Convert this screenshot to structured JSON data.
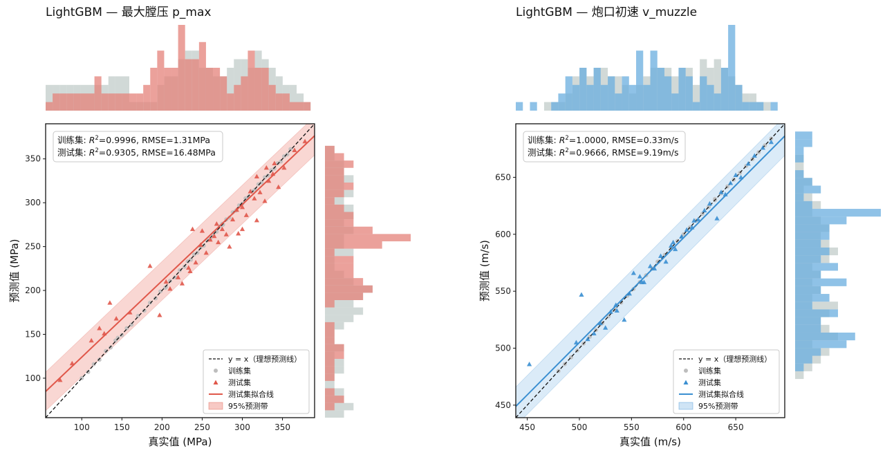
{
  "colors": {
    "train": "#bdbdbd",
    "train_hist": "#b3bfbd",
    "left_accent": "#e0574a",
    "left_hist": "#e4817a",
    "left_band": "#f7c9c4",
    "right_accent": "#3a8fd1",
    "right_hist": "#6aaedf",
    "right_band": "#cfe4f5"
  },
  "chart_data": [
    {
      "type": "scatter",
      "title": "LightGBM — 最大膛压 p_max",
      "xlabel": "真实值 (MPa)",
      "ylabel": "预测值 (MPa)",
      "xlim": [
        55,
        390
      ],
      "ylim": [
        55,
        390
      ],
      "xticks": [
        100,
        150,
        200,
        250,
        300,
        350
      ],
      "yticks": [
        100,
        150,
        200,
        250,
        300,
        350
      ],
      "stats": {
        "train": {
          "prefix": "训练集: ",
          "r2": "=0.9996",
          "rmse": ", RMSE=1.31MPa"
        },
        "test": {
          "prefix": "测试集: ",
          "r2": "=0.9305",
          "rmse": ", RMSE=16.48MPa"
        }
      },
      "r2_label": "R",
      "fit": {
        "slope": 0.87,
        "intercept": 37,
        "band": 22
      },
      "legend": [
        "y = x（理想预测线）",
        "训练集",
        "测试集",
        "测试集拟合线",
        "95%预测带"
      ],
      "train": {
        "x": [
          100,
          108,
          115,
          122,
          130,
          136,
          142,
          150,
          156,
          162,
          170,
          178,
          185,
          192,
          198,
          204,
          210,
          216,
          222,
          228,
          232,
          236,
          240,
          244,
          248,
          252,
          256,
          260,
          264,
          268,
          272,
          276,
          280,
          284,
          288,
          292,
          296,
          300,
          304,
          308,
          312,
          316,
          320,
          324,
          328,
          332,
          336,
          340,
          344,
          348,
          352,
          356,
          360,
          145,
          205,
          275
        ],
        "y": [
          100,
          107,
          116,
          121,
          131,
          135,
          143,
          149,
          157,
          161,
          171,
          177,
          186,
          191,
          199,
          203,
          211,
          215,
          223,
          227,
          233,
          235,
          241,
          243,
          249,
          251,
          257,
          259,
          265,
          267,
          273,
          275,
          281,
          283,
          289,
          291,
          297,
          299,
          305,
          307,
          313,
          315,
          321,
          323,
          329,
          331,
          337,
          339,
          345,
          347,
          353,
          355,
          361,
          146,
          204,
          276
        ]
      },
      "test": {
        "x": [
          73,
          88,
          112,
          122,
          128,
          135,
          143,
          160,
          185,
          197,
          205,
          210,
          220,
          225,
          233,
          238,
          242,
          248,
          255,
          260,
          265,
          270,
          275,
          280,
          284,
          288,
          293,
          300,
          305,
          310,
          315,
          318,
          322,
          328,
          333,
          338,
          345,
          352,
          365,
          378,
          235,
          295,
          318,
          300,
          330,
          340,
          250,
          268
        ],
        "y": [
          98,
          117,
          143,
          157,
          151,
          186,
          168,
          175,
          228,
          172,
          210,
          202,
          215,
          208,
          226,
          270,
          232,
          252,
          243,
          258,
          262,
          255,
          270,
          264,
          250,
          281,
          292,
          270,
          286,
          313,
          305,
          280,
          312,
          302,
          325,
          333,
          318,
          340,
          360,
          370,
          222,
          265,
          330,
          295,
          340,
          345,
          268,
          276
        ]
      },
      "hist_top": {
        "edges": [
          55,
          385
        ],
        "train": [
          3,
          3,
          3,
          3,
          3,
          3,
          3,
          3,
          3,
          4,
          4,
          4,
          1,
          1,
          1,
          1,
          3,
          4,
          4,
          6,
          7,
          7,
          5,
          5,
          4,
          4,
          5,
          6,
          6,
          5,
          7,
          6,
          5,
          4,
          3,
          3,
          2,
          1
        ],
        "test": [
          1,
          2,
          2,
          2,
          2,
          2,
          2,
          4,
          2,
          2,
          2,
          2,
          2,
          2,
          3,
          5,
          7,
          5,
          5,
          10,
          6,
          6,
          8,
          5,
          5,
          4,
          2,
          3,
          4,
          7,
          5,
          5,
          3,
          2,
          2,
          1,
          1,
          1
        ]
      },
      "hist_right": {
        "edges": [
          55,
          390
        ],
        "train": [
          2,
          3,
          2,
          2,
          1,
          1,
          2,
          2,
          1,
          2,
          1,
          1,
          2,
          3,
          4,
          3,
          4,
          5,
          3,
          2,
          1,
          1,
          3,
          2,
          2,
          3,
          2,
          3,
          3,
          2,
          3,
          2,
          3,
          2,
          2,
          1,
          1,
          0,
          0,
          0
        ],
        "test": [
          0,
          1,
          2,
          1,
          0,
          1,
          1,
          1,
          2,
          2,
          1,
          1,
          1,
          0,
          0,
          1,
          4,
          5,
          4,
          3,
          3,
          3,
          1,
          6,
          9,
          5,
          3,
          3,
          2,
          1,
          2,
          3,
          2,
          2,
          3,
          2,
          1,
          0,
          0,
          0
        ]
      }
    },
    {
      "type": "scatter",
      "title": "LightGBM — 炮口初速 v_muzzle",
      "xlabel": "真实值 (m/s)",
      "ylabel": "预测值 (m/s)",
      "xlim": [
        439,
        697
      ],
      "ylim": [
        439,
        697
      ],
      "xticks": [
        450,
        500,
        550,
        600,
        650
      ],
      "yticks": [
        450,
        500,
        550,
        600,
        650
      ],
      "stats": {
        "train": {
          "prefix": "训练集: ",
          "r2": "=1.0000",
          "rmse": ", RMSE=0.33m/s"
        },
        "test": {
          "prefix": "测试集: ",
          "r2": "=0.9666",
          "rmse": ", RMSE=9.19m/s"
        }
      },
      "r2_label": "R",
      "fit": {
        "slope": 0.92,
        "intercept": 45,
        "band": 17
      },
      "legend": [
        "y = x（理想预测线）",
        "训练集",
        "测试集",
        "测试集拟合线",
        "95%预测带"
      ],
      "train": {
        "x": [
          480,
          486,
          492,
          498,
          504,
          510,
          516,
          522,
          528,
          534,
          540,
          546,
          552,
          558,
          564,
          570,
          576,
          582,
          588,
          594,
          600,
          606,
          612,
          618,
          624,
          630,
          636,
          642,
          648,
          654,
          660,
          666,
          672,
          678,
          684,
          520,
          575,
          630
        ],
        "y": [
          480,
          486,
          492,
          498,
          504,
          510,
          516,
          522,
          528,
          534,
          540,
          546,
          552,
          558,
          564,
          570,
          576,
          582,
          588,
          594,
          600,
          606,
          612,
          618,
          624,
          630,
          636,
          642,
          648,
          654,
          660,
          666,
          672,
          678,
          684,
          521,
          576,
          631
        ]
      },
      "test": {
        "x": [
          452,
          497,
          502,
          508,
          514,
          520,
          525,
          530,
          536,
          543,
          548,
          552,
          558,
          562,
          568,
          572,
          578,
          583,
          588,
          592,
          598,
          603,
          608,
          614,
          620,
          625,
          632,
          636,
          640,
          645,
          650,
          655,
          662,
          668,
          676,
          684,
          535,
          560,
          590,
          610
        ],
        "y": [
          486,
          505,
          547,
          508,
          513,
          522,
          518,
          532,
          533,
          525,
          548,
          566,
          563,
          558,
          572,
          570,
          581,
          576,
          590,
          587,
          598,
          604,
          606,
          613,
          621,
          627,
          614,
          637,
          635,
          645,
          652,
          650,
          662,
          669,
          676,
          681,
          538,
          558,
          593,
          612
        ]
      },
      "hist_top": {
        "edges": [
          439,
          697
        ],
        "train": [
          0,
          0,
          0,
          0,
          1,
          1,
          1,
          2,
          4,
          5,
          4,
          5,
          5,
          4,
          4,
          3,
          2,
          3,
          4,
          5,
          5,
          5,
          4,
          5,
          5,
          3,
          6,
          5,
          6,
          5,
          4,
          3,
          2,
          2,
          1,
          1,
          0,
          0
        ],
        "test": [
          1,
          0,
          1,
          0,
          0,
          1,
          2,
          4,
          3,
          5,
          3,
          5,
          3,
          4,
          2,
          4,
          3,
          7,
          3,
          7,
          5,
          4,
          2,
          5,
          4,
          1,
          4,
          3,
          2,
          5,
          10,
          3,
          1,
          1,
          1,
          0,
          1,
          0
        ]
      },
      "hist_right": {
        "edges": [
          439,
          697
        ],
        "train": [
          0,
          0,
          0,
          0,
          0,
          1,
          2,
          3,
          4,
          2,
          5,
          4,
          3,
          4,
          5,
          2,
          3,
          2,
          3,
          2,
          4,
          5,
          4,
          3,
          4,
          3,
          2,
          3,
          2,
          1,
          2,
          1,
          1,
          1,
          0,
          0,
          0,
          0
        ],
        "test": [
          0,
          0,
          0,
          0,
          0,
          0,
          1,
          2,
          3,
          6,
          7,
          3,
          3,
          5,
          2,
          4,
          3,
          6,
          3,
          5,
          3,
          4,
          3,
          4,
          4,
          6,
          10,
          2,
          1,
          3,
          2,
          1,
          0,
          1,
          1,
          2,
          2,
          0
        ]
      }
    }
  ]
}
